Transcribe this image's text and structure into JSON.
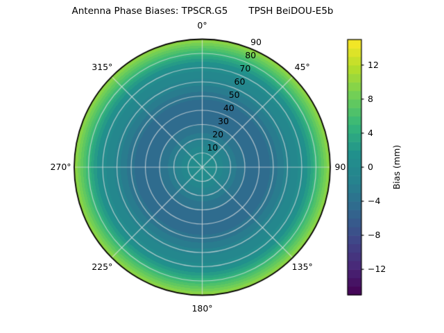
{
  "title": "Antenna Phase Biases: TPSCR.G5       TPSH BeiDOU-E5b",
  "colors": {
    "background": "#ffffff",
    "text": "#000000",
    "grid": "#e4e4e4",
    "outline": "#000000"
  },
  "polar_axis": {
    "theta_tick_labels": [
      "0°",
      "45°",
      "90",
      "135°",
      "180°",
      "225°",
      "270°",
      "315°"
    ],
    "radial_tick_labels": [
      "10",
      "20",
      "30",
      "40",
      "50",
      "60",
      "70",
      "80",
      "90"
    ]
  },
  "colorbar": {
    "label": "Bias (mm)",
    "tick_labels": [
      "12",
      "8",
      "4",
      "0",
      "−4",
      "−8",
      "−12"
    ],
    "tick_values": [
      12,
      8,
      4,
      0,
      -4,
      -8,
      -12
    ],
    "vmin": -15,
    "vmax": 15,
    "colormap": "viridis"
  },
  "chart_data": {
    "type": "heatmap",
    "projection": "polar",
    "title": "Antenna Phase Biases: TPSCR.G5       TPSH BeiDOU-E5b",
    "units": "mm",
    "angular_symmetric": true,
    "theta_ticks_deg": [
      0,
      45,
      90,
      135,
      180,
      225,
      270,
      315
    ],
    "theta_direction": "clockwise-from-top",
    "r_ticks": [
      10,
      20,
      30,
      40,
      50,
      60,
      70,
      80,
      90
    ],
    "r_max": 90,
    "vmin": -15,
    "vmax": 15,
    "levels_step": 1,
    "colormap": "viridis",
    "colormap_stops": [
      "#440154",
      "#482878",
      "#3e4989",
      "#31688e",
      "#26828e",
      "#21918c",
      "#35b779",
      "#6ece58",
      "#b5de2b",
      "#fde725"
    ],
    "colorbar_label": "Bias (mm)",
    "colorbar_ticks": [
      -12,
      -8,
      -4,
      0,
      4,
      8,
      12
    ],
    "radial_profile": {
      "r": [
        0,
        10,
        20,
        30,
        40,
        50,
        60,
        70,
        75,
        80,
        85,
        90
      ],
      "bias_mm": [
        1.4,
        0.0,
        -2.2,
        -4.0,
        -4.8,
        -3.6,
        -1.4,
        0.6,
        2.4,
        5.0,
        7.7,
        10.4
      ]
    }
  }
}
